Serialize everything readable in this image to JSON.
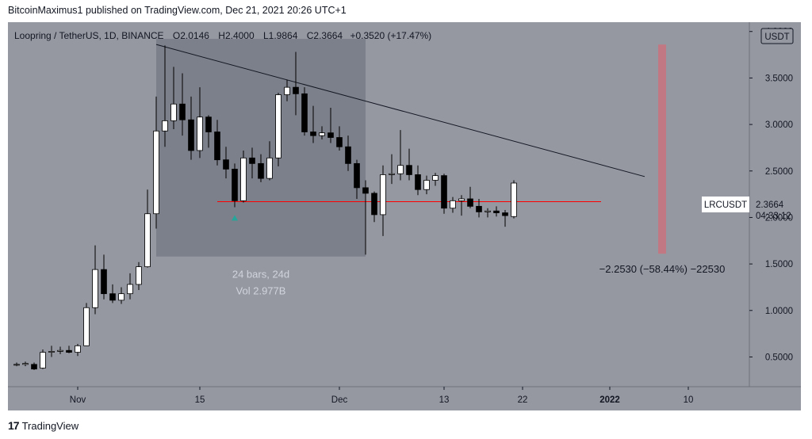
{
  "publisher": "BitcoinMaximus1 published on TradingView.com, Dec 21, 2021 20:26 UTC+1",
  "footer": {
    "logo": "17",
    "brand": "TradingView"
  },
  "legend": {
    "symbol": "Loopring / TetherUS, 1D, BINANCE",
    "o_label": "O",
    "o": "2.0146",
    "h_label": "H",
    "h": "2.4000",
    "l_label": "L",
    "l": "1.9864",
    "c_label": "C",
    "c": "2.3664",
    "change": "+0.3520 (+17.47%)"
  },
  "currency": "USDT",
  "price_tag": {
    "ticker": "LRCUSDT",
    "price": "2.3664",
    "countdown": "04:33:12"
  },
  "range_box": {
    "bars": "24 bars, 24d",
    "vol": "Vol 2.977B"
  },
  "measure_label": "−2.2530 (−58.44%) −22530",
  "colors": {
    "background": "#9598a1",
    "up_body": "#ffffff",
    "down_body": "#000000",
    "wick": "#000000",
    "range_box": "#787b86",
    "support": "#ff0000",
    "trendline": "#131722",
    "measure": "#f7525f",
    "arrow": "#26a69a"
  },
  "chart_data": {
    "type": "candlestick",
    "x": {
      "start": "2021-10-24",
      "end": "2022-01-17"
    },
    "ylim": [
      0.18,
      4.1
    ],
    "yticks": [
      4.0,
      3.5,
      3.0,
      2.5,
      2.0,
      1.5,
      1.0,
      0.5
    ],
    "ytick_labels": [
      "4.0000",
      "3.5000",
      "3.0000",
      "2.5000",
      "2.0000",
      "1.5000",
      "1.0000",
      "0.5000"
    ],
    "xticks": [
      {
        "date": "2021-11-01",
        "label": "Nov",
        "bold": false
      },
      {
        "date": "2021-11-15",
        "label": "15",
        "bold": false
      },
      {
        "date": "2021-12-01",
        "label": "Dec",
        "bold": false
      },
      {
        "date": "2021-12-13",
        "label": "13",
        "bold": false
      },
      {
        "date": "2021-12-22",
        "label": "22",
        "bold": false
      },
      {
        "date": "2022-01-01",
        "label": "2022",
        "bold": true
      },
      {
        "date": "2022-01-10",
        "label": "10",
        "bold": false
      }
    ],
    "candles": [
      {
        "d": "2021-10-25",
        "o": 0.42,
        "h": 0.44,
        "l": 0.4,
        "c": 0.42
      },
      {
        "d": "2021-10-26",
        "o": 0.42,
        "h": 0.45,
        "l": 0.4,
        "c": 0.43
      },
      {
        "d": "2021-10-27",
        "o": 0.42,
        "h": 0.44,
        "l": 0.36,
        "c": 0.37
      },
      {
        "d": "2021-10-28",
        "o": 0.38,
        "h": 0.58,
        "l": 0.37,
        "c": 0.55
      },
      {
        "d": "2021-10-29",
        "o": 0.55,
        "h": 0.62,
        "l": 0.5,
        "c": 0.56
      },
      {
        "d": "2021-10-30",
        "o": 0.56,
        "h": 0.61,
        "l": 0.53,
        "c": 0.57
      },
      {
        "d": "2021-10-31",
        "o": 0.57,
        "h": 0.62,
        "l": 0.54,
        "c": 0.55
      },
      {
        "d": "2021-11-01",
        "o": 0.55,
        "h": 0.64,
        "l": 0.51,
        "c": 0.62
      },
      {
        "d": "2021-11-02",
        "o": 0.62,
        "h": 1.08,
        "l": 0.62,
        "c": 1.03
      },
      {
        "d": "2021-11-03",
        "o": 1.03,
        "h": 1.7,
        "l": 0.96,
        "c": 1.44
      },
      {
        "d": "2021-11-04",
        "o": 1.44,
        "h": 1.6,
        "l": 1.12,
        "c": 1.18
      },
      {
        "d": "2021-11-05",
        "o": 1.18,
        "h": 1.28,
        "l": 1.08,
        "c": 1.11
      },
      {
        "d": "2021-11-06",
        "o": 1.11,
        "h": 1.25,
        "l": 1.07,
        "c": 1.18
      },
      {
        "d": "2021-11-07",
        "o": 1.18,
        "h": 1.4,
        "l": 1.12,
        "c": 1.28
      },
      {
        "d": "2021-11-08",
        "o": 1.28,
        "h": 1.52,
        "l": 1.22,
        "c": 1.47
      },
      {
        "d": "2021-11-09",
        "o": 1.47,
        "h": 2.3,
        "l": 1.46,
        "c": 2.04
      },
      {
        "d": "2021-11-10",
        "o": 2.04,
        "h": 3.3,
        "l": 1.88,
        "c": 2.93
      },
      {
        "d": "2021-11-11",
        "o": 2.93,
        "h": 3.85,
        "l": 2.76,
        "c": 3.04
      },
      {
        "d": "2021-11-12",
        "o": 3.04,
        "h": 3.62,
        "l": 2.95,
        "c": 3.22
      },
      {
        "d": "2021-11-13",
        "o": 3.22,
        "h": 3.55,
        "l": 2.88,
        "c": 3.05
      },
      {
        "d": "2021-11-14",
        "o": 3.05,
        "h": 3.3,
        "l": 2.62,
        "c": 2.72
      },
      {
        "d": "2021-11-15",
        "o": 2.72,
        "h": 3.4,
        "l": 2.64,
        "c": 3.08
      },
      {
        "d": "2021-11-16",
        "o": 3.08,
        "h": 3.1,
        "l": 2.75,
        "c": 2.92
      },
      {
        "d": "2021-11-17",
        "o": 2.92,
        "h": 3.05,
        "l": 2.56,
        "c": 2.62
      },
      {
        "d": "2021-11-18",
        "o": 2.62,
        "h": 2.76,
        "l": 2.42,
        "c": 2.52
      },
      {
        "d": "2021-11-19",
        "o": 2.52,
        "h": 2.58,
        "l": 2.11,
        "c": 2.18
      },
      {
        "d": "2021-11-20",
        "o": 2.18,
        "h": 2.72,
        "l": 2.16,
        "c": 2.64
      },
      {
        "d": "2021-11-21",
        "o": 2.64,
        "h": 2.75,
        "l": 2.42,
        "c": 2.58
      },
      {
        "d": "2021-11-22",
        "o": 2.58,
        "h": 2.68,
        "l": 2.38,
        "c": 2.42
      },
      {
        "d": "2021-11-23",
        "o": 2.42,
        "h": 2.82,
        "l": 2.4,
        "c": 2.64
      },
      {
        "d": "2021-11-24",
        "o": 2.64,
        "h": 3.34,
        "l": 2.55,
        "c": 3.32
      },
      {
        "d": "2021-11-25",
        "o": 3.32,
        "h": 3.48,
        "l": 3.25,
        "c": 3.4
      },
      {
        "d": "2021-11-26",
        "o": 3.4,
        "h": 3.78,
        "l": 3.1,
        "c": 3.33
      },
      {
        "d": "2021-11-27",
        "o": 3.33,
        "h": 3.4,
        "l": 2.88,
        "c": 2.92
      },
      {
        "d": "2021-11-28",
        "o": 2.92,
        "h": 3.2,
        "l": 2.8,
        "c": 2.88
      },
      {
        "d": "2021-11-29",
        "o": 2.88,
        "h": 2.98,
        "l": 2.84,
        "c": 2.91
      },
      {
        "d": "2021-11-30",
        "o": 2.91,
        "h": 3.18,
        "l": 2.8,
        "c": 2.86
      },
      {
        "d": "2021-12-01",
        "o": 2.86,
        "h": 2.98,
        "l": 2.72,
        "c": 2.76
      },
      {
        "d": "2021-12-02",
        "o": 2.76,
        "h": 2.88,
        "l": 2.5,
        "c": 2.58
      },
      {
        "d": "2021-12-03",
        "o": 2.58,
        "h": 2.62,
        "l": 2.2,
        "c": 2.32
      },
      {
        "d": "2021-12-04",
        "o": 2.32,
        "h": 2.4,
        "l": 1.6,
        "c": 2.26
      },
      {
        "d": "2021-12-05",
        "o": 2.26,
        "h": 2.28,
        "l": 1.95,
        "c": 2.03
      },
      {
        "d": "2021-12-06",
        "o": 2.03,
        "h": 2.56,
        "l": 1.8,
        "c": 2.46
      },
      {
        "d": "2021-12-07",
        "o": 2.46,
        "h": 2.68,
        "l": 2.36,
        "c": 2.47
      },
      {
        "d": "2021-12-08",
        "o": 2.47,
        "h": 2.94,
        "l": 2.4,
        "c": 2.56
      },
      {
        "d": "2021-12-09",
        "o": 2.56,
        "h": 2.74,
        "l": 2.4,
        "c": 2.46
      },
      {
        "d": "2021-12-10",
        "o": 2.46,
        "h": 2.56,
        "l": 2.24,
        "c": 2.3
      },
      {
        "d": "2021-12-11",
        "o": 2.3,
        "h": 2.45,
        "l": 2.25,
        "c": 2.4
      },
      {
        "d": "2021-12-12",
        "o": 2.4,
        "h": 2.48,
        "l": 2.34,
        "c": 2.45
      },
      {
        "d": "2021-12-13",
        "o": 2.45,
        "h": 2.47,
        "l": 2.04,
        "c": 2.1
      },
      {
        "d": "2021-12-14",
        "o": 2.1,
        "h": 2.22,
        "l": 2.05,
        "c": 2.18
      },
      {
        "d": "2021-12-15",
        "o": 2.18,
        "h": 2.24,
        "l": 2.02,
        "c": 2.2
      },
      {
        "d": "2021-12-16",
        "o": 2.2,
        "h": 2.33,
        "l": 2.1,
        "c": 2.12
      },
      {
        "d": "2021-12-17",
        "o": 2.12,
        "h": 2.2,
        "l": 2.0,
        "c": 2.06
      },
      {
        "d": "2021-12-18",
        "o": 2.06,
        "h": 2.1,
        "l": 2.0,
        "c": 2.07
      },
      {
        "d": "2021-12-19",
        "o": 2.07,
        "h": 2.12,
        "l": 2.01,
        "c": 2.05
      },
      {
        "d": "2021-12-20",
        "o": 2.05,
        "h": 2.08,
        "l": 1.9,
        "c": 2.02
      },
      {
        "d": "2021-12-21",
        "o": 2.01,
        "h": 2.4,
        "l": 1.99,
        "c": 2.37
      }
    ],
    "range_box": {
      "x_start": "2021-11-10",
      "x_end": "2021-12-04",
      "y_top": 3.92,
      "y_bottom": 1.58
    },
    "support_line": {
      "x_start": "2021-11-17",
      "x_end": "2021-12-31",
      "y": 2.17
    },
    "trendline": {
      "x_start": "2021-11-10",
      "y_start": 3.86,
      "x_end": "2022-01-05",
      "y_end": 2.44
    },
    "measure_bar": {
      "x": "2022-01-07",
      "y_top": 3.86,
      "y_bottom": 1.61
    },
    "marker_arrow": {
      "x": "2021-11-19",
      "y": 2.0
    }
  }
}
